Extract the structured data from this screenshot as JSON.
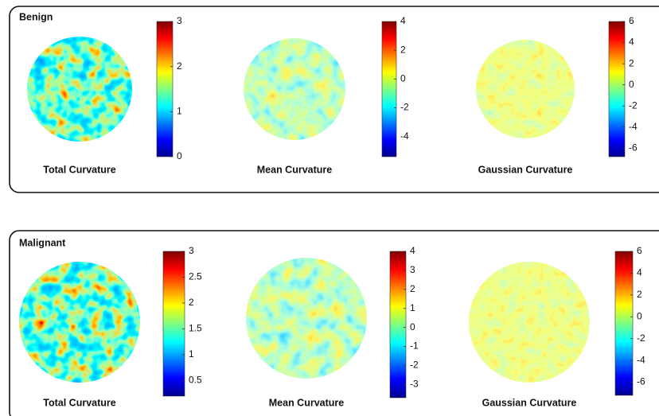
{
  "panels": [
    {
      "label": "Benign",
      "items": [
        {
          "caption": "Total Curvature",
          "lim": [
            0,
            3
          ],
          "ticks": [
            0,
            1,
            2,
            3
          ]
        },
        {
          "caption": "Mean Curvature",
          "lim": [
            -5.4,
            4
          ],
          "ticks": [
            -4,
            -2,
            0,
            2,
            4
          ]
        },
        {
          "caption": "Gaussian Curvature",
          "lim": [
            -6.8,
            6
          ],
          "ticks": [
            -6,
            -4,
            -2,
            0,
            2,
            4,
            6
          ]
        }
      ]
    },
    {
      "label": "Malignant",
      "items": [
        {
          "caption": "Total Curvature",
          "lim": [
            0.2,
            3
          ],
          "ticks": [
            0.5,
            1,
            1.5,
            2,
            2.5,
            3
          ]
        },
        {
          "caption": "Mean Curvature",
          "lim": [
            -3.7,
            4
          ],
          "ticks": [
            -3,
            -2,
            -1,
            0,
            1,
            2,
            3,
            4
          ]
        },
        {
          "caption": "Gaussian Curvature",
          "lim": [
            -7.2,
            6
          ],
          "ticks": [
            -6,
            -4,
            -2,
            0,
            2,
            4,
            6
          ]
        }
      ]
    }
  ]
}
